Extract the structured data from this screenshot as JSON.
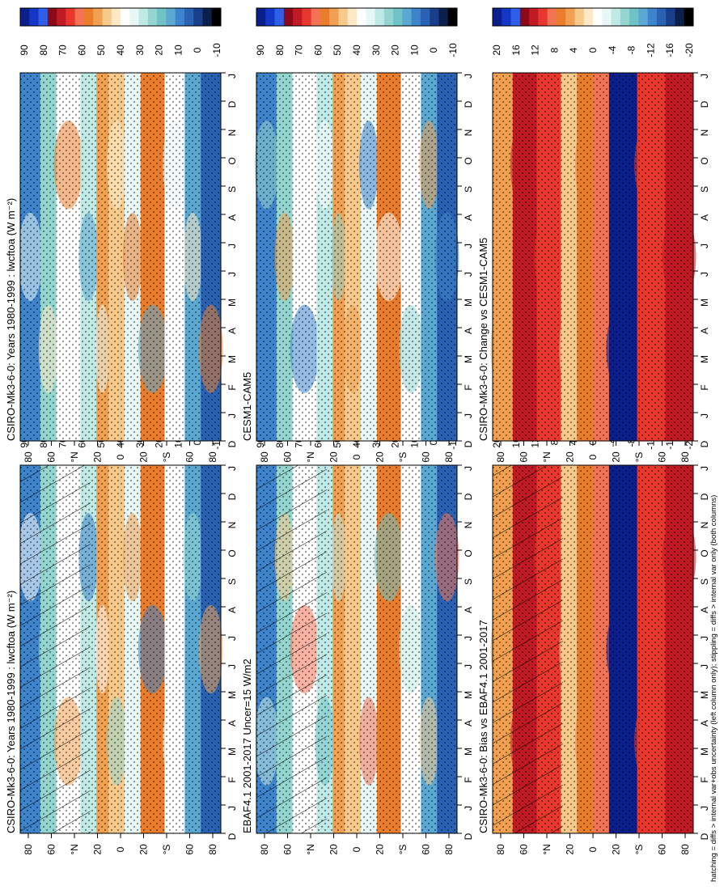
{
  "chart_data": {
    "type": "heatmap",
    "footer": "hatching = diffs > internal var+obs uncertainty (left column only); stippling = diffs > internal var only (both columns)",
    "time_labels": [
      "D",
      "J",
      "F",
      "M",
      "A",
      "M",
      "J",
      "J",
      "A",
      "S",
      "O",
      "N",
      "D",
      "J"
    ],
    "lat_labels": [
      "80",
      "60",
      "°N",
      "20",
      "0",
      "20",
      "°S",
      "60",
      "80"
    ],
    "abs_colorbar": {
      "ticks": [
        "90",
        "80",
        "70",
        "60",
        "50",
        "40",
        "30",
        "20",
        "10",
        "0",
        "-10"
      ],
      "colors": [
        "#0b1f8c",
        "#1437c8",
        "#2f5ee8",
        "#8a0a1a",
        "#c01a25",
        "#e8382e",
        "#f47354",
        "#e97d2b",
        "#f0a050",
        "#f7c98a",
        "#fde9c6",
        "#ffffff",
        "#e6f7f5",
        "#bfe9e4",
        "#94d6cf",
        "#6fc3c6",
        "#5ba8d2",
        "#3d84cc",
        "#2a62b3",
        "#1a3f8a",
        "#0b1f4d",
        "#000000"
      ]
    },
    "diff_colorbar": {
      "ticks": [
        "20",
        "16",
        "12",
        "8",
        "4",
        "0",
        "-4",
        "-8",
        "-12",
        "-16",
        "-20"
      ],
      "colors": [
        "#0b1f8c",
        "#1437c8",
        "#2f5ee8",
        "#8a0a1a",
        "#c01a25",
        "#e8382e",
        "#f47354",
        "#e97d2b",
        "#f0a050",
        "#f7c98a",
        "#fde9c6",
        "#ffffff",
        "#e6f7f5",
        "#bfe9e4",
        "#94d6cf",
        "#6fc3c6",
        "#5ba8d2",
        "#3d84cc",
        "#2a62b3",
        "#1a3f8a",
        "#0b1f4d",
        "#000000"
      ]
    },
    "panels": [
      {
        "id": "model-left",
        "title": "CSIRO-Mk3-6-0: Years 1980-1999 : lwcftoa (W m⁻²)",
        "kind": "abs",
        "hatch": true,
        "stipple": true
      },
      {
        "id": "model-right",
        "title": "CSIRO-Mk3-6-0: Years 1980-1999 : lwcftoa (W m⁻²)",
        "kind": "abs",
        "hatch": false,
        "stipple": true
      },
      {
        "id": "obs-left",
        "title": "EBAF4.1 2001-2017 Uncer=15 W/m2",
        "kind": "abs",
        "hatch": true,
        "stipple": true
      },
      {
        "id": "ref-right",
        "title": "CESM1-CAM5",
        "kind": "abs",
        "hatch": false,
        "stipple": true
      },
      {
        "id": "bias-left",
        "title": "CSIRO-Mk3-6-0: Bias vs EBAF4.1 2001-2017",
        "kind": "diff",
        "hatch": true,
        "stipple": true
      },
      {
        "id": "change-right",
        "title": "CSIRO-Mk3-6-0: Change vs CESM1-CAM5",
        "kind": "diff",
        "hatch": false,
        "stipple": true
      }
    ]
  }
}
